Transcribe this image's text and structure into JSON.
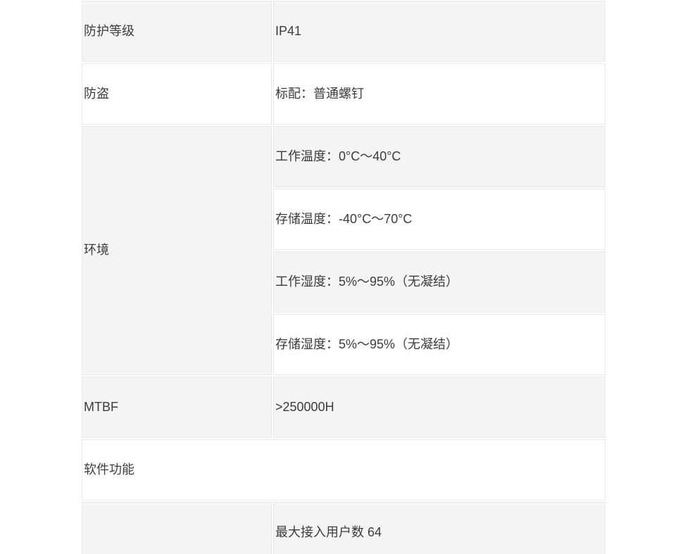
{
  "page": {
    "background": "#ffffff"
  },
  "spec_table": {
    "colors": {
      "cell_gray": "#f4f4f4",
      "cell_white": "#ffffff",
      "border": "#e9e9e9",
      "text": "#3c3c3c"
    },
    "rows": {
      "protection": {
        "label": "防护等级",
        "value": "IP41"
      },
      "antitheft": {
        "label": "防盗",
        "value": "标配：普通螺钉"
      },
      "environment": {
        "label": "环境",
        "items": [
          "工作温度：0°C～40°C",
          "存储温度：-40°C～70°C",
          "工作湿度：5%～95%（无凝结）",
          "存储湿度：5%～95%（无凝结）"
        ]
      },
      "mtbf": {
        "label": "MTBF",
        "value": ">250000H"
      },
      "software": {
        "label": "软件功能"
      },
      "max_users": {
        "value": "最大接入用户数 64"
      }
    }
  }
}
